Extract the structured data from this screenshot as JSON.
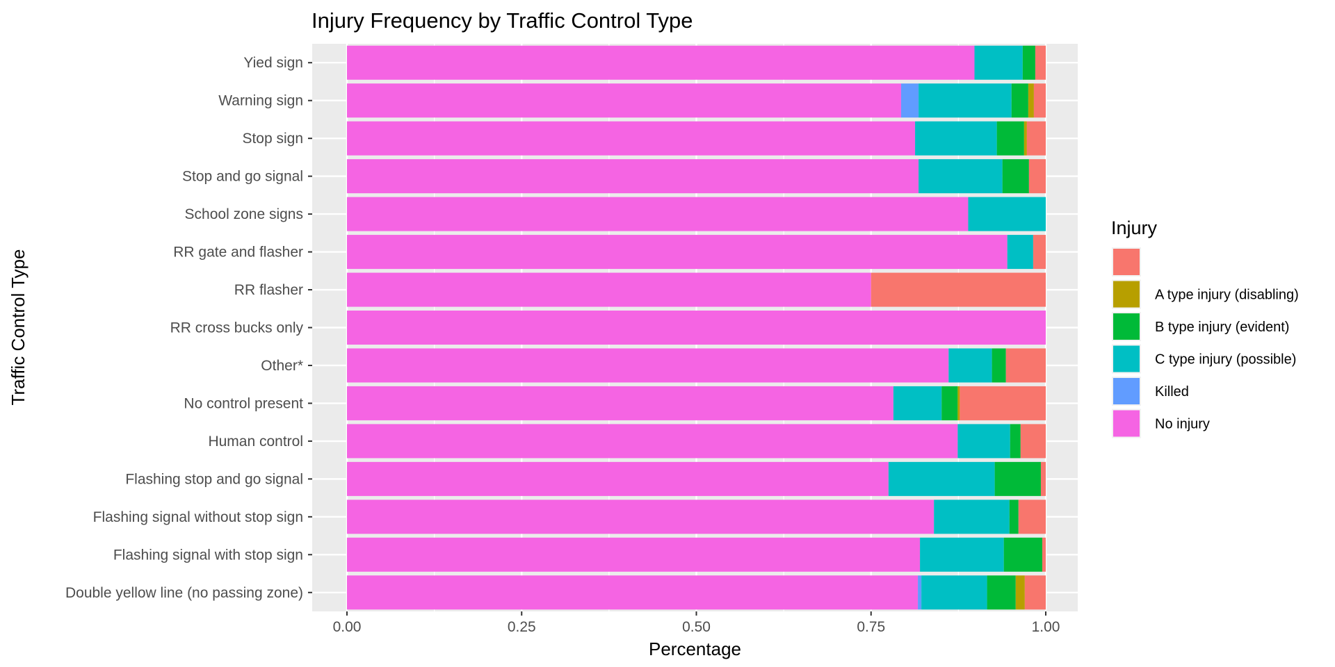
{
  "chart_data": {
    "type": "bar",
    "orientation": "horizontal",
    "stacked": "fill",
    "title": "Injury Frequency by Traffic Control Type",
    "xlabel": "Percentage",
    "ylabel": "Traffic Control Type",
    "xlim": [
      0,
      1
    ],
    "xticks": [
      "0.00",
      "0.25",
      "0.50",
      "0.75",
      "1.00"
    ],
    "grid": true,
    "categories": [
      "Yied sign",
      "Warning sign",
      "Stop sign",
      "Stop and go signal",
      "School zone signs",
      "RR gate and flasher",
      "RR flasher",
      "RR cross bucks only",
      "Other*",
      "No control present",
      "Human control",
      "Flashing stop and go signal",
      "Flashing signal without stop sign",
      "Flashing signal with stop sign",
      "Double yellow line (no passing zone)"
    ],
    "legend": {
      "title": "Injury",
      "position": "right",
      "entries": [
        "",
        "A type injury (disabling)",
        "B type injury (evident)",
        "C type injury (possible)",
        "Killed",
        "No injury"
      ]
    },
    "stack_order": [
      "No injury",
      "Killed",
      "C type injury (possible)",
      "B type injury (evident)",
      "A type injury (disabling)",
      ""
    ],
    "series": [
      {
        "name": "",
        "color": "#F8766D",
        "values": [
          0.015,
          0.017,
          0.027,
          0.024,
          0.0,
          0.018,
          0.25,
          0.0,
          0.057,
          0.123,
          0.036,
          0.007,
          0.039,
          0.005,
          0.03
        ]
      },
      {
        "name": "A type injury (disabling)",
        "color": "#B79F00",
        "values": [
          0.0,
          0.008,
          0.004,
          0.0,
          0.0,
          0.0,
          0.0,
          0.0,
          0.0,
          0.003,
          0.0,
          0.0,
          0.0,
          0.0,
          0.013
        ]
      },
      {
        "name": "B type injury (evident)",
        "color": "#00BA38",
        "values": [
          0.018,
          0.024,
          0.039,
          0.038,
          0.0,
          0.0,
          0.0,
          0.0,
          0.02,
          0.023,
          0.015,
          0.066,
          0.013,
          0.055,
          0.041
        ]
      },
      {
        "name": "C type injury (possible)",
        "color": "#00BFC4",
        "values": [
          0.069,
          0.133,
          0.117,
          0.12,
          0.111,
          0.037,
          0.0,
          0.0,
          0.062,
          0.069,
          0.075,
          0.152,
          0.108,
          0.12,
          0.094
        ]
      },
      {
        "name": "Killed",
        "color": "#619CFF",
        "values": [
          0.0,
          0.025,
          0.0,
          0.0,
          0.0,
          0.0,
          0.0,
          0.0,
          0.0,
          0.0,
          0.0,
          0.0,
          0.0,
          0.0,
          0.005
        ]
      },
      {
        "name": "No injury",
        "color": "#F564E3",
        "values": [
          0.898,
          0.793,
          0.813,
          0.818,
          0.889,
          0.945,
          0.75,
          1.0,
          0.861,
          0.782,
          0.874,
          0.775,
          0.84,
          0.82,
          0.817
        ]
      }
    ]
  }
}
